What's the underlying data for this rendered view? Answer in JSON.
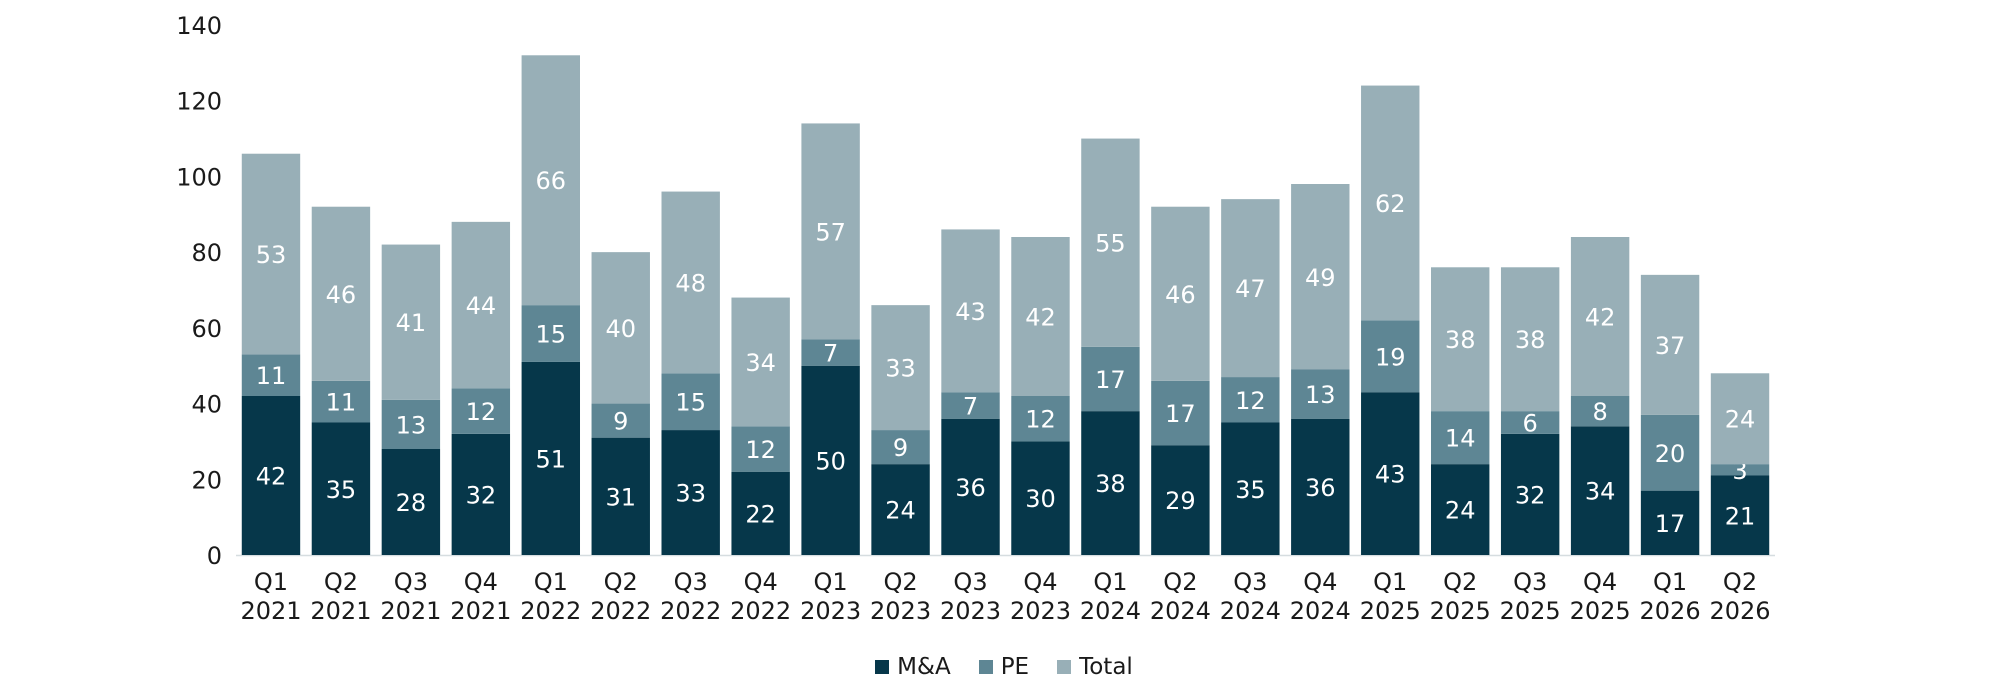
{
  "chart_data": {
    "type": "bar",
    "stacked": true,
    "title": "",
    "xlabel": "",
    "ylabel": "",
    "ylim": [
      0,
      140
    ],
    "yticks": [
      0,
      20,
      40,
      60,
      80,
      100,
      120,
      140
    ],
    "grid": false,
    "legend_position": "bottom-center",
    "categories": [
      [
        "Q1",
        "2021"
      ],
      [
        "Q2",
        "2021"
      ],
      [
        "Q3",
        "2021"
      ],
      [
        "Q4",
        "2021"
      ],
      [
        "Q1",
        "2022"
      ],
      [
        "Q2",
        "2022"
      ],
      [
        "Q3",
        "2022"
      ],
      [
        "Q4",
        "2022"
      ],
      [
        "Q1",
        "2023"
      ],
      [
        "Q2",
        "2023"
      ],
      [
        "Q3",
        "2023"
      ],
      [
        "Q4",
        "2023"
      ],
      [
        "Q1",
        "2024"
      ],
      [
        "Q2",
        "2024"
      ],
      [
        "Q3",
        "2024"
      ],
      [
        "Q4",
        "2024"
      ],
      [
        "Q1",
        "2025"
      ],
      [
        "Q2",
        "2025"
      ],
      [
        "Q3",
        "2025"
      ],
      [
        "Q4",
        "2025"
      ],
      [
        "Q1",
        "2026"
      ],
      [
        "Q2",
        "2026"
      ]
    ],
    "series": [
      {
        "name": "M&A",
        "color": "#06374a",
        "values": [
          42,
          35,
          28,
          32,
          51,
          31,
          33,
          22,
          50,
          24,
          36,
          30,
          38,
          29,
          35,
          36,
          43,
          24,
          32,
          34,
          17,
          21
        ]
      },
      {
        "name": "PE",
        "color": "#5e8694",
        "values": [
          11,
          11,
          13,
          12,
          15,
          9,
          15,
          12,
          7,
          9,
          7,
          12,
          17,
          17,
          12,
          13,
          19,
          14,
          6,
          8,
          20,
          3
        ]
      },
      {
        "name": "Total",
        "color": "#98afb7",
        "values": [
          53,
          46,
          41,
          44,
          66,
          40,
          48,
          34,
          57,
          33,
          43,
          42,
          55,
          46,
          47,
          49,
          62,
          38,
          38,
          42,
          37,
          24
        ]
      }
    ],
    "label_color": "#ffffff",
    "axis_color": "#d6dde0",
    "text_color": "#1a1a1a"
  }
}
